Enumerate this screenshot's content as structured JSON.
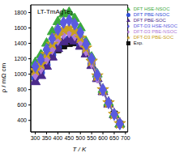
{
  "chart_data": {
    "type": "line",
    "title": "LT-TmAgTe₂",
    "x_label": "T / K",
    "y_label": "ρ / mΩ cm",
    "x": [
      300,
      325,
      350,
      375,
      400,
      425,
      450,
      475,
      500,
      525,
      550,
      575,
      600,
      625,
      650,
      675
    ],
    "xlim": [
      280,
      710
    ],
    "xticks": [
      300,
      350,
      400,
      450,
      500,
      550,
      600,
      650,
      700
    ],
    "ylim": [
      250,
      1900
    ],
    "yticks": [
      400,
      600,
      800,
      1000,
      1200,
      1400,
      1600,
      1800
    ],
    "grid": false,
    "legend": "upper right",
    "series": [
      {
        "name": "Exp.",
        "color": "#111111",
        "marker": "square",
        "values": [
          1050,
          1100,
          1180,
          1250,
          1320,
          1370,
          1400,
          1410,
          1370,
          1280,
          1130,
          950,
          780,
          620,
          480,
          350
        ]
      },
      {
        "name": "DFT PBE-NSOC",
        "color": "#2f4fd8",
        "marker": "circle",
        "values": [
          950,
          1020,
          1120,
          1250,
          1350,
          1430,
          1460,
          1440,
          1380,
          1280,
          1130,
          950,
          780,
          620,
          480,
          360
        ]
      },
      {
        "name": "DFT PBE-SOC",
        "color": "#4b2a8a",
        "marker": "triangle",
        "values": [
          900,
          980,
          1100,
          1220,
          1330,
          1420,
          1450,
          1430,
          1360,
          1260,
          1110,
          940,
          770,
          610,
          470,
          350
        ]
      },
      {
        "name": "DFT HSE-NSOC",
        "color": "#3daa3d",
        "marker": "triangle",
        "values": [
          1150,
          1250,
          1400,
          1550,
          1680,
          1780,
          1800,
          1720,
          1600,
          1420,
          1220,
          1000,
          800,
          630,
          480,
          350
        ]
      },
      {
        "name": "DFT-D3 PBE-NSOC",
        "color": "#b07ad8",
        "marker": "diamond",
        "values": [
          1000,
          1080,
          1200,
          1330,
          1450,
          1530,
          1550,
          1510,
          1430,
          1310,
          1150,
          960,
          790,
          630,
          480,
          360
        ]
      },
      {
        "name": "DFT-D3 PBE-SOC",
        "color": "#c9a020",
        "marker": "star",
        "values": [
          1050,
          1130,
          1260,
          1390,
          1500,
          1580,
          1600,
          1560,
          1470,
          1340,
          1170,
          980,
          800,
          630,
          480,
          360
        ]
      },
      {
        "name": "DFT-D3 HSE-NSOC",
        "color": "#5a5ae0",
        "marker": "diamond",
        "values": [
          1100,
          1190,
          1320,
          1460,
          1580,
          1670,
          1700,
          1650,
          1540,
          1390,
          1200,
          990,
          800,
          630,
          480,
          355
        ]
      }
    ]
  }
}
